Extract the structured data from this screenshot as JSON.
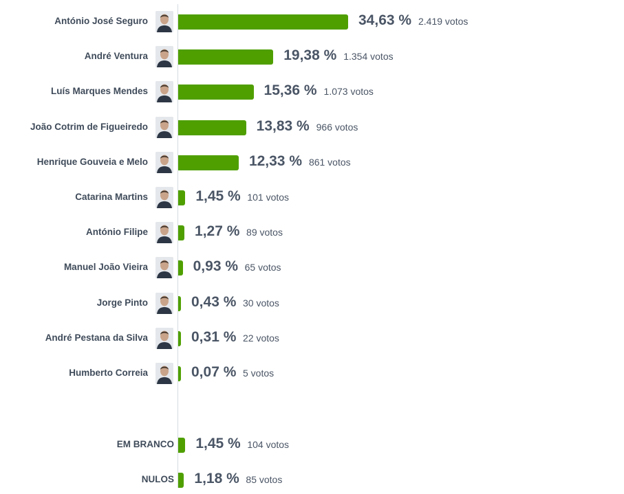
{
  "chart_data": {
    "type": "bar",
    "orientation": "horizontal",
    "title": "",
    "xlabel": "",
    "ylabel": "",
    "xlim": [
      0,
      38
    ],
    "grid": false,
    "legend": "none",
    "bar_color": "#4f9f00",
    "candidates": [
      {
        "label": "António José Seguro",
        "pct": 34.63,
        "pct_label": "34,63 %",
        "votes": "2.419 votos",
        "avatar_icon": "candidate-photo-icon"
      },
      {
        "label": "André Ventura",
        "pct": 19.38,
        "pct_label": "19,38 %",
        "votes": "1.354 votos",
        "avatar_icon": "candidate-photo-icon"
      },
      {
        "label": "Luís Marques Mendes",
        "pct": 15.36,
        "pct_label": "15,36 %",
        "votes": "1.073 votos",
        "avatar_icon": "candidate-photo-icon"
      },
      {
        "label": "João Cotrim de Figueiredo",
        "pct": 13.83,
        "pct_label": "13,83 %",
        "votes": "966 votos",
        "avatar_icon": "candidate-photo-icon"
      },
      {
        "label": "Henrique Gouveia e Melo",
        "pct": 12.33,
        "pct_label": "12,33 %",
        "votes": "861 votos",
        "avatar_icon": "candidate-photo-icon"
      },
      {
        "label": "Catarina Martins",
        "pct": 1.45,
        "pct_label": "1,45 %",
        "votes": "101 votos",
        "avatar_icon": "candidate-photo-icon"
      },
      {
        "label": "António Filipe",
        "pct": 1.27,
        "pct_label": "1,27 %",
        "votes": "89 votos",
        "avatar_icon": "candidate-photo-icon"
      },
      {
        "label": "Manuel João Vieira",
        "pct": 0.93,
        "pct_label": "0,93 %",
        "votes": "65 votos",
        "avatar_icon": "candidate-photo-icon"
      },
      {
        "label": "Jorge Pinto",
        "pct": 0.43,
        "pct_label": "0,43 %",
        "votes": "30 votos",
        "avatar_icon": "candidate-photo-icon"
      },
      {
        "label": "André Pestana da Silva",
        "pct": 0.31,
        "pct_label": "0,31 %",
        "votes": "22 votos",
        "avatar_icon": "candidate-photo-icon"
      },
      {
        "label": "Humberto Correia",
        "pct": 0.07,
        "pct_label": "0,07 %",
        "votes": "5 votos",
        "avatar_icon": "candidate-photo-icon"
      }
    ],
    "other": [
      {
        "label": "EM BRANCO",
        "pct": 1.45,
        "pct_label": "1,45 %",
        "votes": "104 votos"
      },
      {
        "label": "NULOS",
        "pct": 1.18,
        "pct_label": "1,18 %",
        "votes": "85 votos"
      }
    ]
  }
}
